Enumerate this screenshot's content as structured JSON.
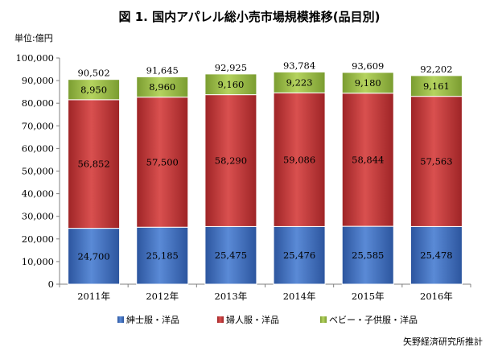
{
  "title": "図 1. 国内アパレル総小売市場規模推移(品目別)",
  "unit_label": "単位:億円",
  "source_note": "矢野経済研究所推計",
  "colors": {
    "mens": "#3f6fbf",
    "womens": "#c0393a",
    "kids": "#98bb47"
  },
  "chart_data": {
    "type": "bar",
    "stacked": true,
    "categories": [
      "2011年",
      "2012年",
      "2013年",
      "2014年",
      "2015年",
      "2016年"
    ],
    "series": [
      {
        "name": "紳士服・洋品",
        "values": [
          24700,
          25185,
          25475,
          25476,
          25585,
          25478
        ],
        "labels": [
          "24,700",
          "25,185",
          "25,475",
          "25,476",
          "25,585",
          "25,478"
        ]
      },
      {
        "name": "婦人服・洋品",
        "values": [
          56852,
          57500,
          58290,
          59086,
          58844,
          57563
        ],
        "labels": [
          "56,852",
          "57,500",
          "58,290",
          "59,086",
          "58,844",
          "57,563"
        ]
      },
      {
        "name": "ベビー・子供服・洋品",
        "values": [
          8950,
          8960,
          9160,
          9223,
          9180,
          9161
        ],
        "labels": [
          "8,950",
          "8,960",
          "9,160",
          "9,223",
          "9,180",
          "9,161"
        ]
      }
    ],
    "totals": [
      90502,
      91645,
      92925,
      93784,
      93609,
      92202
    ],
    "total_labels": [
      "90,502",
      "91,645",
      "92,925",
      "93,784",
      "93,609",
      "92,202"
    ],
    "ylim": [
      0,
      100000
    ],
    "yticks": [
      0,
      10000,
      20000,
      30000,
      40000,
      50000,
      60000,
      70000,
      80000,
      90000,
      100000
    ],
    "ytick_labels": [
      "0",
      "10,000",
      "20,000",
      "30,000",
      "40,000",
      "50,000",
      "60,000",
      "70,000",
      "80,000",
      "90,000",
      "100,000"
    ],
    "grid": false,
    "legend_position": "bottom"
  }
}
